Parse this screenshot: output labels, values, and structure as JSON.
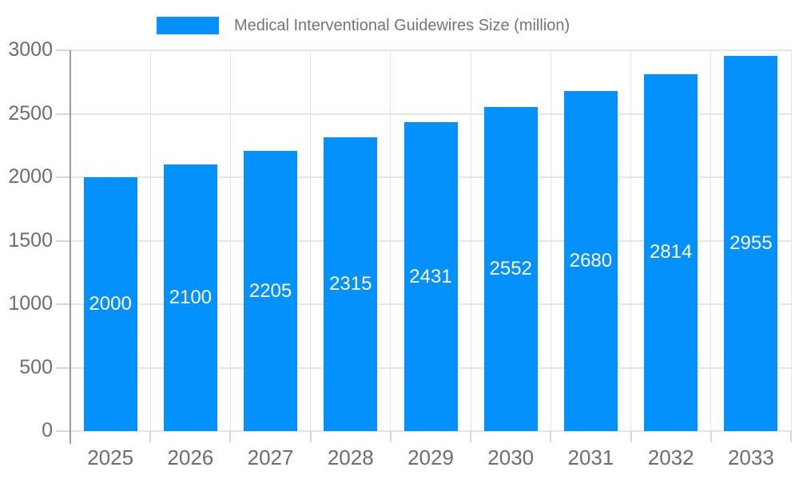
{
  "legend": {
    "label": "Medical Interventional Guidewires Size (million)"
  },
  "chart_data": {
    "type": "bar",
    "title": "Medical Interventional Guidewires Size (million)",
    "categories": [
      "2025",
      "2026",
      "2027",
      "2028",
      "2029",
      "2030",
      "2031",
      "2032",
      "2033"
    ],
    "values": [
      2000,
      2100,
      2205,
      2315,
      2431,
      2552,
      2680,
      2814,
      2955
    ],
    "series": [
      {
        "name": "Medical Interventional Guidewires Size (million)",
        "values": [
          2000,
          2100,
          2205,
          2315,
          2431,
          2552,
          2680,
          2814,
          2955
        ]
      }
    ],
    "xlabel": "",
    "ylabel": "",
    "ylim": [
      0,
      3000
    ],
    "yticks": [
      0,
      500,
      1000,
      1500,
      2000,
      2500,
      3000
    ],
    "grid": true,
    "legend_position": "top-center",
    "bar_value_labels": true,
    "colors": {
      "bar": "#0591fb",
      "bar_label_text": "#ffffff",
      "legend_text": "#757575",
      "axis_tick_text": "#6e6e6e",
      "gridline": "#e5e5e5",
      "tick_mark": "#d6d6d6",
      "axis_line": "#9b9b9b",
      "background": "#ffffff"
    }
  }
}
